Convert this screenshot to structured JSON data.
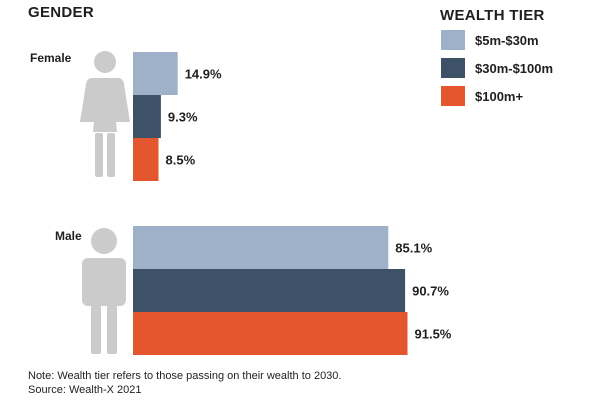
{
  "chart_data": {
    "type": "bar",
    "orientation": "horizontal",
    "title": "GENDER",
    "categories": [
      "Female",
      "Male"
    ],
    "series": [
      {
        "name": "$5m-$30m",
        "color": "#9fb1c8",
        "values": [
          14.9,
          85.1
        ],
        "labels": [
          "14.9%",
          "85.1%"
        ]
      },
      {
        "name": "$30m-$100m",
        "color": "#3d5167",
        "values": [
          9.3,
          90.7
        ],
        "labels": [
          "9.3%",
          "90.7%"
        ]
      },
      {
        "name": "$100m+",
        "color": "#e4572e",
        "values": [
          8.5,
          91.5
        ],
        "labels": [
          "8.5%",
          "91.5%"
        ]
      }
    ],
    "legend_title": "WEALTH TIER",
    "legend_position": "top-right",
    "xlim": [
      0,
      100
    ],
    "unit": "%",
    "note": "Note: Wealth tier refers to those passing on their wealth to 2030.",
    "source": "Source: Wealth-X 2021"
  },
  "icons": {
    "female": "female-figure-icon",
    "male": "male-figure-icon"
  }
}
